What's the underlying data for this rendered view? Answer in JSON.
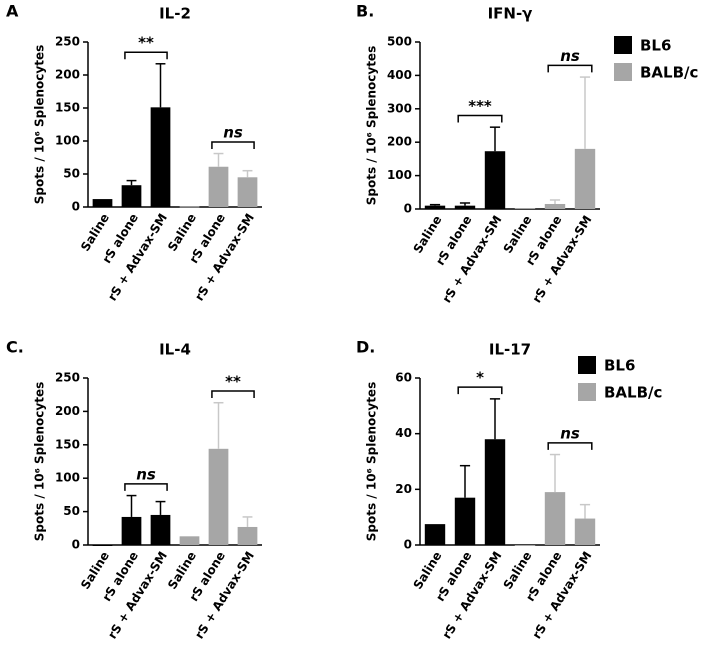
{
  "chart_data": [
    {
      "type": "bar",
      "panel": "A",
      "title": "IL-2",
      "y_label": "Spots / 10⁶ Splenocytes",
      "categories": [
        "Saline",
        "rS alone",
        "rS + Advax-SM",
        "Saline",
        "rS alone",
        "rS + Advax-SM"
      ],
      "series": [
        {
          "color": "#000000",
          "values": [
            12,
            33,
            151,
            null,
            null,
            null
          ],
          "errors": [
            null,
            7,
            66,
            null,
            null,
            null
          ]
        },
        {
          "color": "#a6a6a6",
          "values": [
            null,
            null,
            null,
            1,
            61,
            45
          ],
          "errors": [
            null,
            null,
            null,
            null,
            20,
            10
          ]
        }
      ],
      "ylim": [
        0,
        250
      ],
      "yticks": [
        0,
        50,
        100,
        150,
        200,
        250
      ],
      "annotations": [
        {
          "text": "**",
          "bars": [
            1,
            2
          ]
        },
        {
          "text": "ns",
          "bars": [
            4,
            5
          ]
        }
      ]
    },
    {
      "type": "bar",
      "panel": "B.",
      "title": "IFN-γ",
      "y_label": "Spots / 10⁶ Splenocytes",
      "categories": [
        "Saline",
        "rS alone",
        "rS + Advax-SM",
        "Saline",
        "rS alone",
        "rS + Advax-SM"
      ],
      "series": [
        {
          "name": "BL6",
          "color": "#000000",
          "values": [
            10,
            10,
            173,
            null,
            null,
            null
          ],
          "errors": [
            3,
            8,
            72,
            null,
            null,
            null
          ]
        },
        {
          "name": "BALB/c",
          "color": "#a6a6a6",
          "values": [
            null,
            null,
            null,
            3,
            15,
            180
          ],
          "errors": [
            null,
            null,
            null,
            null,
            12,
            215
          ]
        }
      ],
      "ylim": [
        0,
        500
      ],
      "yticks": [
        0,
        100,
        200,
        300,
        400,
        500
      ],
      "annotations": [
        {
          "text": "***",
          "bars": [
            1,
            2
          ]
        },
        {
          "text": "ns",
          "bars": [
            4,
            5
          ]
        }
      ]
    },
    {
      "type": "bar",
      "panel": "C.",
      "title": "IL-4",
      "y_label": "Spots / 10⁶ Splenocytes",
      "categories": [
        "Saline",
        "rS alone",
        "rS + Advax-SM",
        "Saline",
        "rS alone",
        "rS + Advax-SM"
      ],
      "series": [
        {
          "color": "#000000",
          "values": [
            0,
            42,
            45,
            null,
            null,
            null
          ],
          "errors": [
            null,
            32,
            20,
            null,
            null,
            null
          ]
        },
        {
          "color": "#a6a6a6",
          "values": [
            null,
            null,
            null,
            13,
            144,
            27
          ],
          "errors": [
            null,
            null,
            null,
            null,
            69,
            15
          ]
        }
      ],
      "ylim": [
        0,
        250
      ],
      "yticks": [
        0,
        50,
        100,
        150,
        200,
        250
      ],
      "annotations": [
        {
          "text": "ns",
          "bars": [
            1,
            2
          ]
        },
        {
          "text": "**",
          "bars": [
            4,
            5
          ]
        }
      ]
    },
    {
      "type": "bar",
      "panel": "D.",
      "title": "IL-17",
      "y_label": "Spots / 10⁶ Splenocytes",
      "categories": [
        "Saline",
        "rS alone",
        "rS + Advax-SM",
        "Saline",
        "rS alone",
        "rS + Advax-SM"
      ],
      "series": [
        {
          "name": "BL6",
          "color": "#000000",
          "values": [
            7.5,
            17,
            38,
            null,
            null,
            null
          ],
          "errors": [
            null,
            11.5,
            14.5,
            null,
            null,
            null
          ]
        },
        {
          "name": "BALB/c",
          "color": "#a6a6a6",
          "values": [
            null,
            null,
            null,
            0,
            19,
            9.5
          ],
          "errors": [
            null,
            null,
            null,
            null,
            13.5,
            5
          ]
        }
      ],
      "ylim": [
        0,
        60
      ],
      "yticks": [
        0,
        20,
        40,
        60
      ],
      "annotations": [
        {
          "text": "*",
          "bars": [
            1,
            2
          ]
        },
        {
          "text": "ns",
          "bars": [
            4,
            5
          ]
        }
      ]
    }
  ]
}
